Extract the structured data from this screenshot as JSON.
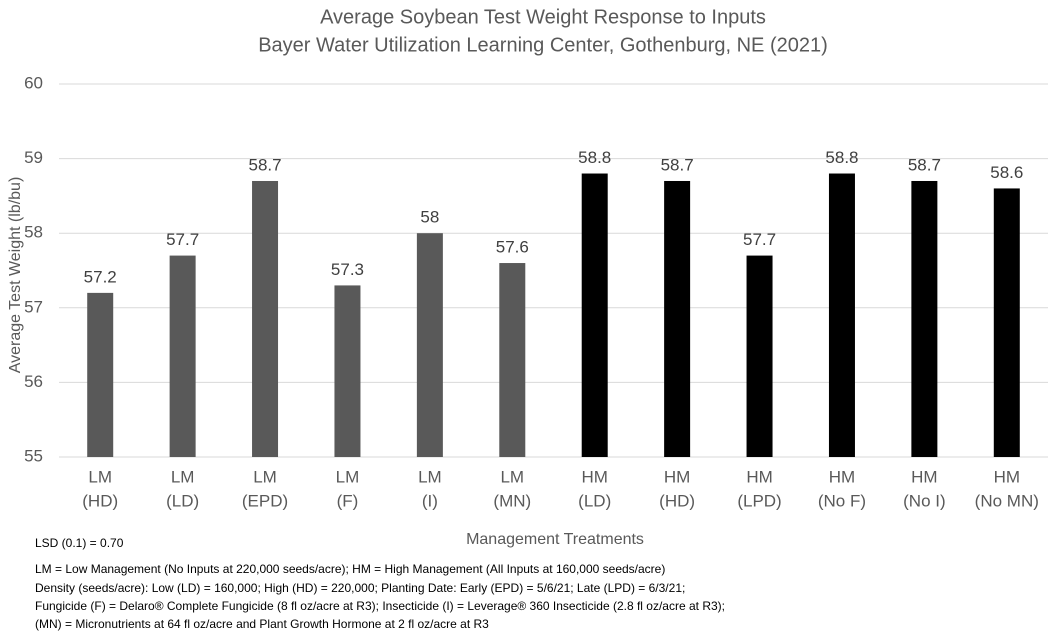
{
  "chart_data": {
    "type": "bar",
    "title": "Average Soybean Test Weight Response to Inputs",
    "subtitle": "Bayer Water Utilization Learning Center, Gothenburg, NE (2021)",
    "x_label": "Management Treatments",
    "y_label": "Average Test Weight (lb/bu)",
    "categories": [
      [
        "LM",
        "(HD)"
      ],
      [
        "LM",
        "(LD)"
      ],
      [
        "LM",
        "(EPD)"
      ],
      [
        "LM",
        "(F)"
      ],
      [
        "LM",
        "(I)"
      ],
      [
        "LM",
        "(MN)"
      ],
      [
        "HM",
        "(LD)"
      ],
      [
        "HM",
        "(HD)"
      ],
      [
        "HM",
        "(LPD)"
      ],
      [
        "HM",
        "(No F)"
      ],
      [
        "HM",
        "(No I)"
      ],
      [
        "HM",
        "(No MN)"
      ]
    ],
    "values": [
      57.2,
      57.7,
      58.7,
      57.3,
      58,
      57.6,
      58.8,
      58.7,
      57.7,
      58.8,
      58.7,
      58.6
    ],
    "colors": [
      "#595959",
      "#595959",
      "#595959",
      "#595959",
      "#595959",
      "#595959",
      "#000000",
      "#000000",
      "#000000",
      "#000000",
      "#000000",
      "#000000"
    ],
    "ylim": [
      55,
      60
    ],
    "yticks": [
      55,
      56,
      57,
      58,
      59,
      60
    ],
    "grid": true,
    "annotations": [
      "LSD (0.1) = 0.70",
      "LM = Low Management (No Inputs at 220,000 seeds/acre); HM = High Management (All Inputs at 160,000 seeds/acre)",
      "Density (seeds/acre): Low (LD) = 160,000; High (HD) = 220,000; Planting Date: Early (EPD) = 5/6/21; Late (LPD) = 6/3/21;",
      "Fungicide (F) = Delaro® Complete Fungicide (8 fl oz/acre at R3); Insecticide (I) = Leverage® 360 Insecticide (2.8 fl oz/acre at R3);",
      "(MN) = Micronutrients at 64 fl oz/acre and Plant Growth Hormone at 2 fl oz/acre at R3"
    ]
  }
}
